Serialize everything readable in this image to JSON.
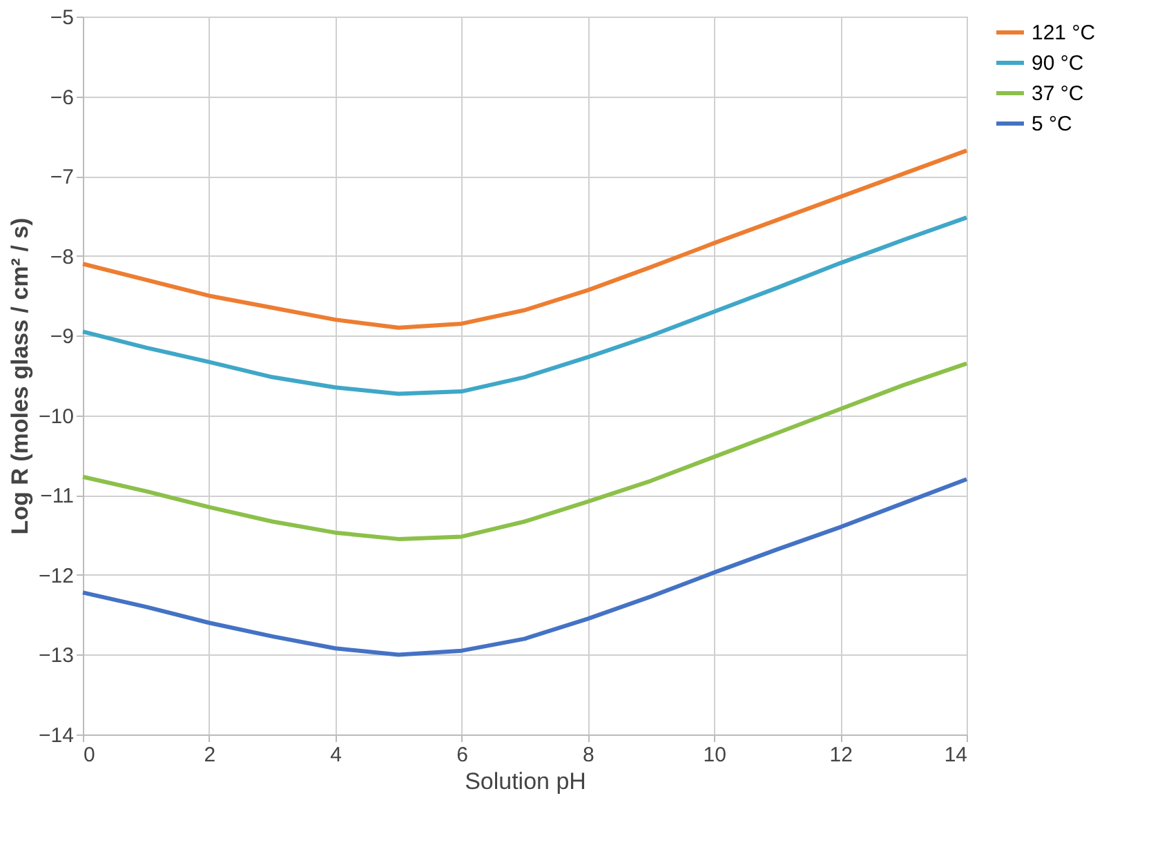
{
  "chart_data": {
    "type": "line",
    "xlabel": "Solution pH",
    "ylabel": "Log R (moles glass / cm² / s)",
    "x": [
      0,
      1,
      2,
      3,
      4,
      5,
      6,
      7,
      8,
      9,
      10,
      11,
      12,
      13,
      14
    ],
    "series": [
      {
        "name": "121 °C",
        "color": "#ed7d31",
        "values": [
          -8.1,
          -8.3,
          -8.5,
          -8.65,
          -8.8,
          -8.9,
          -8.85,
          -8.68,
          -8.43,
          -8.14,
          -7.84,
          -7.55,
          -7.26,
          -6.97,
          -6.68
        ]
      },
      {
        "name": "90 °C",
        "color": "#3fa7c8",
        "values": [
          -8.95,
          -9.15,
          -9.33,
          -9.52,
          -9.65,
          -9.73,
          -9.7,
          -9.52,
          -9.27,
          -9.0,
          -8.7,
          -8.4,
          -8.09,
          -7.8,
          -7.52
        ]
      },
      {
        "name": "37 °C",
        "color": "#8cc04a",
        "values": [
          -10.77,
          -10.95,
          -11.15,
          -11.33,
          -11.47,
          -11.55,
          -11.52,
          -11.33,
          -11.08,
          -10.82,
          -10.52,
          -10.22,
          -9.92,
          -9.62,
          -9.35
        ]
      },
      {
        "name": "5 °C",
        "color": "#4472c4",
        "values": [
          -12.22,
          -12.4,
          -12.6,
          -12.77,
          -12.92,
          -13.0,
          -12.95,
          -12.8,
          -12.55,
          -12.27,
          -11.97,
          -11.68,
          -11.4,
          -11.1,
          -10.8
        ]
      }
    ],
    "xlim": [
      0,
      14
    ],
    "xticks": [
      0,
      2,
      4,
      6,
      8,
      10,
      12,
      14
    ],
    "ylim": [
      -14,
      -5
    ],
    "yticks": [
      -14,
      -13,
      -12,
      -11,
      -10,
      -9,
      -8,
      -7,
      -6,
      -5
    ],
    "grid": true,
    "legend": "right",
    "marker": "none",
    "line_style": "solid"
  }
}
